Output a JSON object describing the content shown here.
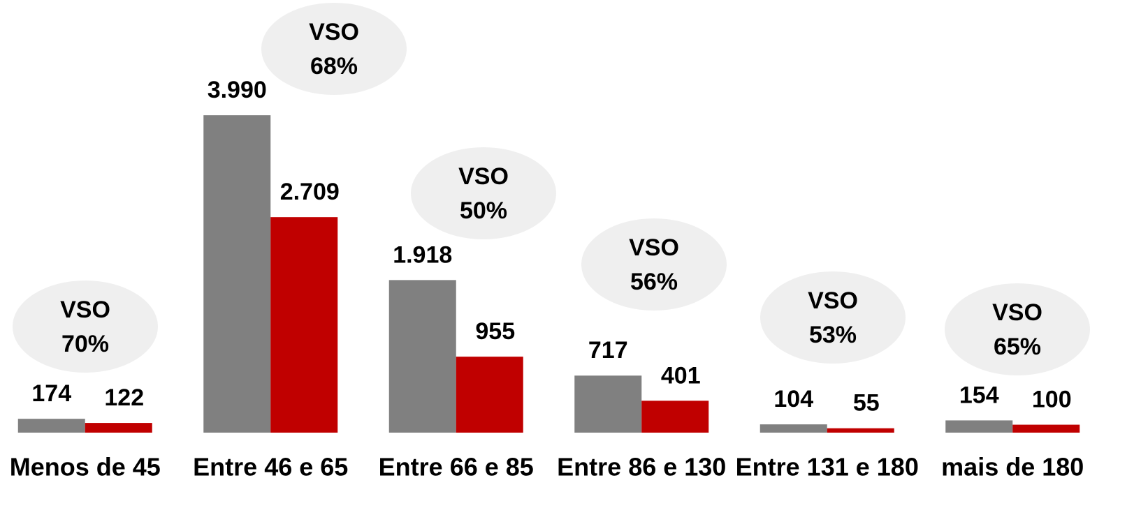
{
  "chart_data": {
    "type": "bar",
    "categories": [
      "Menos de 45",
      "Entre 46 e 65",
      "Entre 66 e 85",
      "Entre 86 e 130",
      "Entre 131 e 180",
      "mais de 180"
    ],
    "series": [
      {
        "color": "#808080",
        "values": [
          174,
          3990,
          1918,
          717,
          104,
          154
        ],
        "value_labels": [
          "174",
          "3.990",
          "1.918",
          "717",
          "104",
          "154"
        ]
      },
      {
        "color": "#c00000",
        "values": [
          122,
          2709,
          955,
          401,
          55,
          100
        ],
        "value_labels": [
          "122",
          "2.709",
          "955",
          "401",
          "55",
          "100"
        ]
      }
    ],
    "annotations": [
      [
        "VSO",
        "70%"
      ],
      [
        "VSO",
        "68%"
      ],
      [
        "VSO",
        "50%"
      ],
      [
        "VSO",
        "56%"
      ],
      [
        "VSO",
        "53%"
      ],
      [
        "VSO",
        "65%"
      ]
    ],
    "ylim": [
      0,
      4000
    ]
  }
}
